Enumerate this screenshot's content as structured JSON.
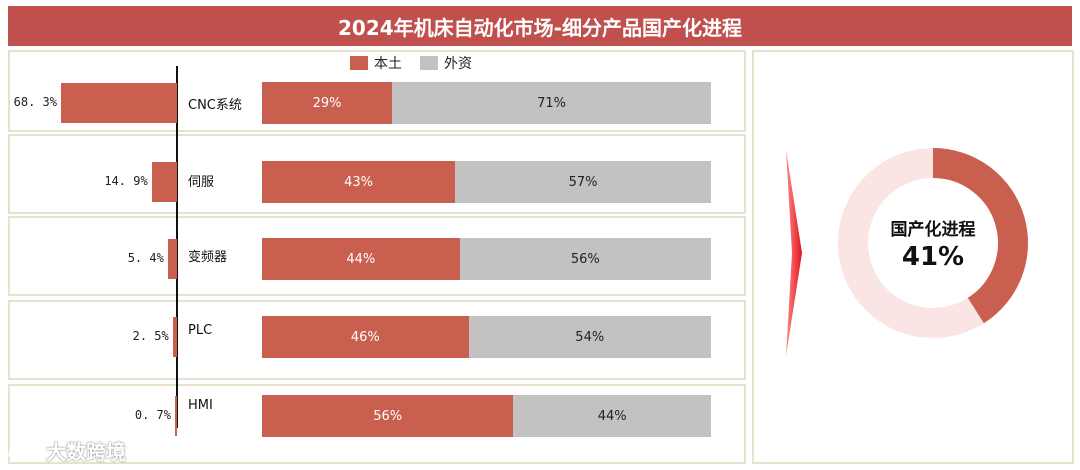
{
  "title": "2024年机床自动化市场-细分产品国产化进程",
  "legend": [
    {
      "label": "本土",
      "color": "#c9604f"
    },
    {
      "label": "外资",
      "color": "#c3c2c2"
    }
  ],
  "chart_data": [
    {
      "type": "bar",
      "orientation": "horizontal",
      "categories": [
        "CNC系统",
        "伺服",
        "变频器",
        "PLC",
        "HMI"
      ],
      "values": [
        68.3,
        14.9,
        5.4,
        2.5,
        0.7
      ],
      "value_labels": [
        "68. 3%",
        "14. 9%",
        "5. 4%",
        "2. 5%",
        "0. 7%"
      ]
    },
    {
      "type": "bar",
      "orientation": "horizontal",
      "stacked": true,
      "percent": true,
      "categories": [
        "CNC系统",
        "伺服",
        "变频器",
        "PLC",
        "HMI"
      ],
      "series": [
        {
          "name": "本土",
          "values": [
            29,
            43,
            44,
            46,
            56
          ],
          "labels": [
            "29%",
            "43%",
            "44%",
            "46%",
            "56%"
          ],
          "color": "#c9604f"
        },
        {
          "name": "外资",
          "values": [
            71,
            57,
            56,
            54,
            44
          ],
          "labels": [
            "71%",
            "57%",
            "56%",
            "54%",
            "44%"
          ],
          "color": "#c3c2c2"
        }
      ]
    },
    {
      "type": "pie",
      "style": "donut",
      "values": [
        41,
        59
      ],
      "center_title": "国产化进程",
      "center_value": "41%",
      "colors": [
        "#c9604f",
        "#fbe4e4"
      ]
    }
  ],
  "brand": {
    "name": "大数跨境",
    "icon": "cloud-logo-icon"
  }
}
